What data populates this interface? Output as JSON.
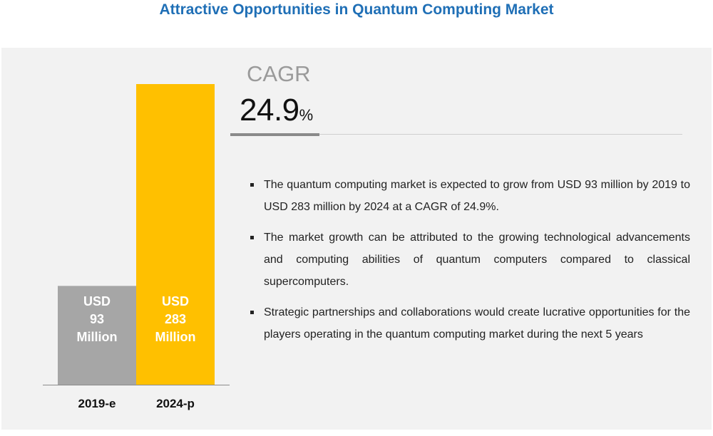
{
  "title": "Attractive Opportunities in Quantum Computing Market",
  "cagr": {
    "label": "CAGR",
    "value": "24.9",
    "unit": "%"
  },
  "bullets": [
    "The quantum computing market is expected to grow from USD 93 million by 2019 to USD 283 million by 2024 at a CAGR of 24.9%.",
    "The market growth can be attributed to the growing technological advancements and computing abilities of quantum computers compared to classical supercomputers.",
    "Strategic partnerships and collaborations would create lucrative opportunities for the players operating in the quantum computing market during the next 5 years"
  ],
  "colors": {
    "title": "#1f6fb6",
    "bar_2019": "#a6a6a6",
    "bar_2024": "#ffc000",
    "panel": "#f2f2f2"
  },
  "chart_data": {
    "type": "bar",
    "categories": [
      "2019-e",
      "2024-p"
    ],
    "values": [
      93,
      283
    ],
    "units": "USD Million",
    "data_labels": [
      [
        "USD",
        "93",
        "Million"
      ],
      [
        "USD",
        "283",
        "Million"
      ]
    ],
    "grid": false
  }
}
